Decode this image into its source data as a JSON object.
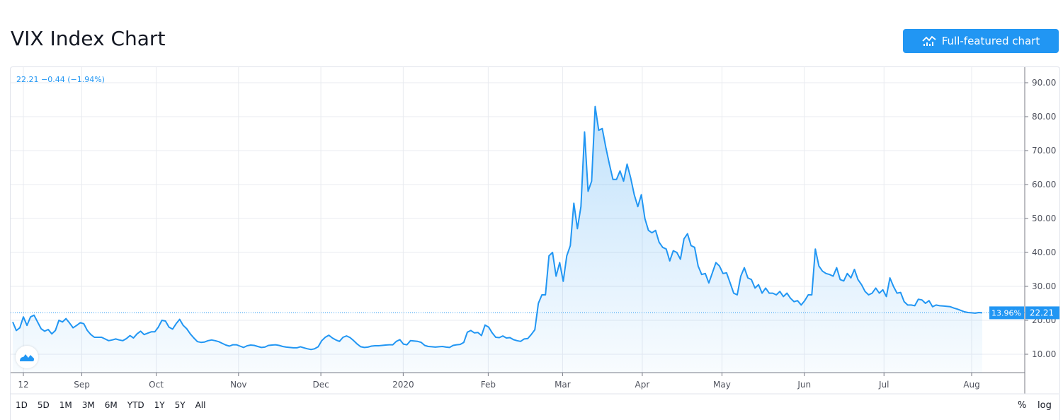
{
  "header": {
    "title": "VIX Index Chart",
    "button_label": "Full-featured chart",
    "button_icon": "chart-line-icon"
  },
  "legend": {
    "last": "22.21",
    "change": "−0.44",
    "change_pct": "(−1.94%)"
  },
  "price_tag": {
    "pct": "13.96%",
    "value": "22.21"
  },
  "toolbar": {
    "ranges": [
      "1D",
      "5D",
      "1M",
      "3M",
      "6M",
      "YTD",
      "1Y",
      "5Y",
      "All"
    ],
    "percent": "%",
    "log": "log"
  },
  "colors": {
    "line": "#2196f3",
    "accent": "#2196f3",
    "grid": "#e9ebf0",
    "text": "#50535e"
  },
  "chart_data": {
    "type": "area",
    "title": "VIX Index Chart",
    "xlabel": "",
    "ylabel": "",
    "ylim": [
      4,
      94
    ],
    "xlim": [
      "2019-08-08",
      "2020-08-07"
    ],
    "grid": true,
    "y_ticks": [
      "10.00",
      "20.00",
      "30.00",
      "40.00",
      "50.00",
      "60.00",
      "70.00",
      "80.00",
      "90.00"
    ],
    "x_ticks": [
      {
        "label": "12",
        "date": "2019-08-12"
      },
      {
        "label": "Sep",
        "date": "2019-09-03"
      },
      {
        "label": "Oct",
        "date": "2019-10-01"
      },
      {
        "label": "Nov",
        "date": "2019-11-01"
      },
      {
        "label": "Dec",
        "date": "2019-12-02"
      },
      {
        "label": "2020",
        "date": "2020-01-02"
      },
      {
        "label": "Feb",
        "date": "2020-02-03"
      },
      {
        "label": "Mar",
        "date": "2020-03-02"
      },
      {
        "label": "Apr",
        "date": "2020-04-01"
      },
      {
        "label": "May",
        "date": "2020-05-01"
      },
      {
        "label": "Jun",
        "date": "2020-06-01"
      },
      {
        "label": "Jul",
        "date": "2020-07-01"
      },
      {
        "label": "Aug",
        "date": "2020-08-03"
      }
    ],
    "series": [
      {
        "name": "VIX",
        "values": [
          19.5,
          17,
          17.8,
          21,
          18.5,
          21,
          21.5,
          19.5,
          17.5,
          16.8,
          17.3,
          16,
          17,
          20,
          19.5,
          20.5,
          19.2,
          17.8,
          18.5,
          19.3,
          19,
          17,
          15.8,
          15,
          15,
          15,
          14.5,
          14,
          14.2,
          14.5,
          14.2,
          14,
          14.6,
          15.5,
          14.8,
          16,
          16.8,
          15.8,
          16.2,
          16.6,
          16.6,
          18,
          20,
          19.8,
          18,
          17.4,
          19,
          20.3,
          18.5,
          17.5,
          16,
          14.8,
          13.7,
          13.5,
          13.6,
          14,
          14.2,
          14,
          13.7,
          13.2,
          12.7,
          12.4,
          12.8,
          12.8,
          12.4,
          12,
          12.5,
          12.7,
          12.6,
          12.3,
          12,
          12.1,
          12.6,
          12.7,
          12.8,
          12.6,
          12.3,
          12.1,
          12,
          11.9,
          11.9,
          12.2,
          11.9,
          11.6,
          11.4,
          11.6,
          12.2,
          14,
          15,
          15.6,
          14.8,
          14.2,
          13.8,
          15,
          15.4,
          14.9,
          14,
          13,
          12.2,
          12,
          12.1,
          12.4,
          12.5,
          12.5,
          12.6,
          12.7,
          12.8,
          12.8,
          13.8,
          14.3,
          13,
          12.8,
          14,
          13.9,
          13.8,
          13.5,
          12.6,
          12.3,
          12.2,
          12.1,
          12.2,
          12.3,
          12.1,
          12,
          12.6,
          12.8,
          12.9,
          13.5,
          16.5,
          17,
          16.3,
          16.4,
          15.5,
          18.6,
          18,
          16.3,
          15,
          14.9,
          15.4,
          14.8,
          14.9,
          14.3,
          14,
          13.8,
          14.5,
          14.6,
          15.8,
          17.2,
          25,
          27.5,
          27.5,
          39,
          40,
          33,
          37,
          31.5,
          39,
          42,
          54.5,
          47,
          53.5,
          75.5,
          58,
          61,
          83,
          76,
          76.5,
          71,
          66,
          61.5,
          61.5,
          64,
          61,
          66,
          62,
          57,
          53.5,
          57,
          50,
          46.5,
          45.8,
          46.5,
          43,
          41.5,
          41,
          37.5,
          40.5,
          40,
          38,
          44,
          45.5,
          42,
          41.5,
          36,
          33.5,
          33.8,
          31,
          34,
          37,
          36,
          33.8,
          34,
          31,
          28,
          27.5,
          33,
          35.5,
          32.5,
          32,
          29.5,
          30.5,
          28,
          29.5,
          28,
          28,
          27.5,
          28.5,
          27,
          28,
          26.5,
          25.5,
          25.8,
          24.5,
          25.8,
          27.5,
          27.5,
          41,
          36,
          34.5,
          33.8,
          33.5,
          33,
          35.5,
          32,
          31.6,
          33.8,
          32.5,
          35,
          32,
          30.5,
          28.5,
          27.5,
          28,
          29.5,
          28,
          29,
          27,
          32.5,
          30,
          28,
          28.2,
          25.5,
          24.5,
          24.5,
          24.3,
          26.2,
          26,
          25,
          25.8,
          24,
          24.5,
          24.3,
          24.2,
          24.1,
          24,
          23.6,
          23.3,
          22.9,
          22.5,
          22.3,
          22.2,
          22.1,
          22.3,
          22.21
        ]
      }
    ],
    "last_value": 22.21
  }
}
